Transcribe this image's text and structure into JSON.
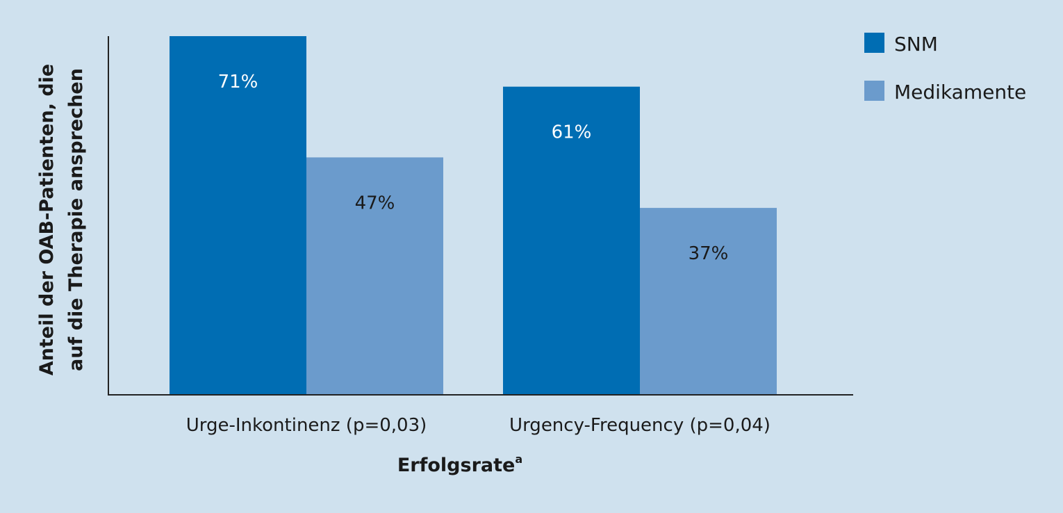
{
  "chart_data": {
    "type": "bar",
    "categories": [
      "Urge-Inkontinenz (p=0,03)",
      "Urgency-Frequency (p=0,04)"
    ],
    "series": [
      {
        "name": "SNM",
        "values": [
          71,
          61
        ],
        "labels": [
          "71%",
          "61%"
        ],
        "color": "#006db3"
      },
      {
        "name": "Medikamente",
        "values": [
          47,
          37
        ],
        "labels": [
          "47%",
          "37%"
        ],
        "color": "#6b9bcc"
      }
    ],
    "xlabel": "Erfolgsrate",
    "xlabel_superscript": "a",
    "ylabel_lines": [
      "Anteil der OAB-Patienten, die",
      "auf die Therapie ansprechen"
    ],
    "ylim": [
      0,
      71
    ],
    "legend_position": "top-right",
    "grid": false,
    "background": "#cfe1ee"
  }
}
